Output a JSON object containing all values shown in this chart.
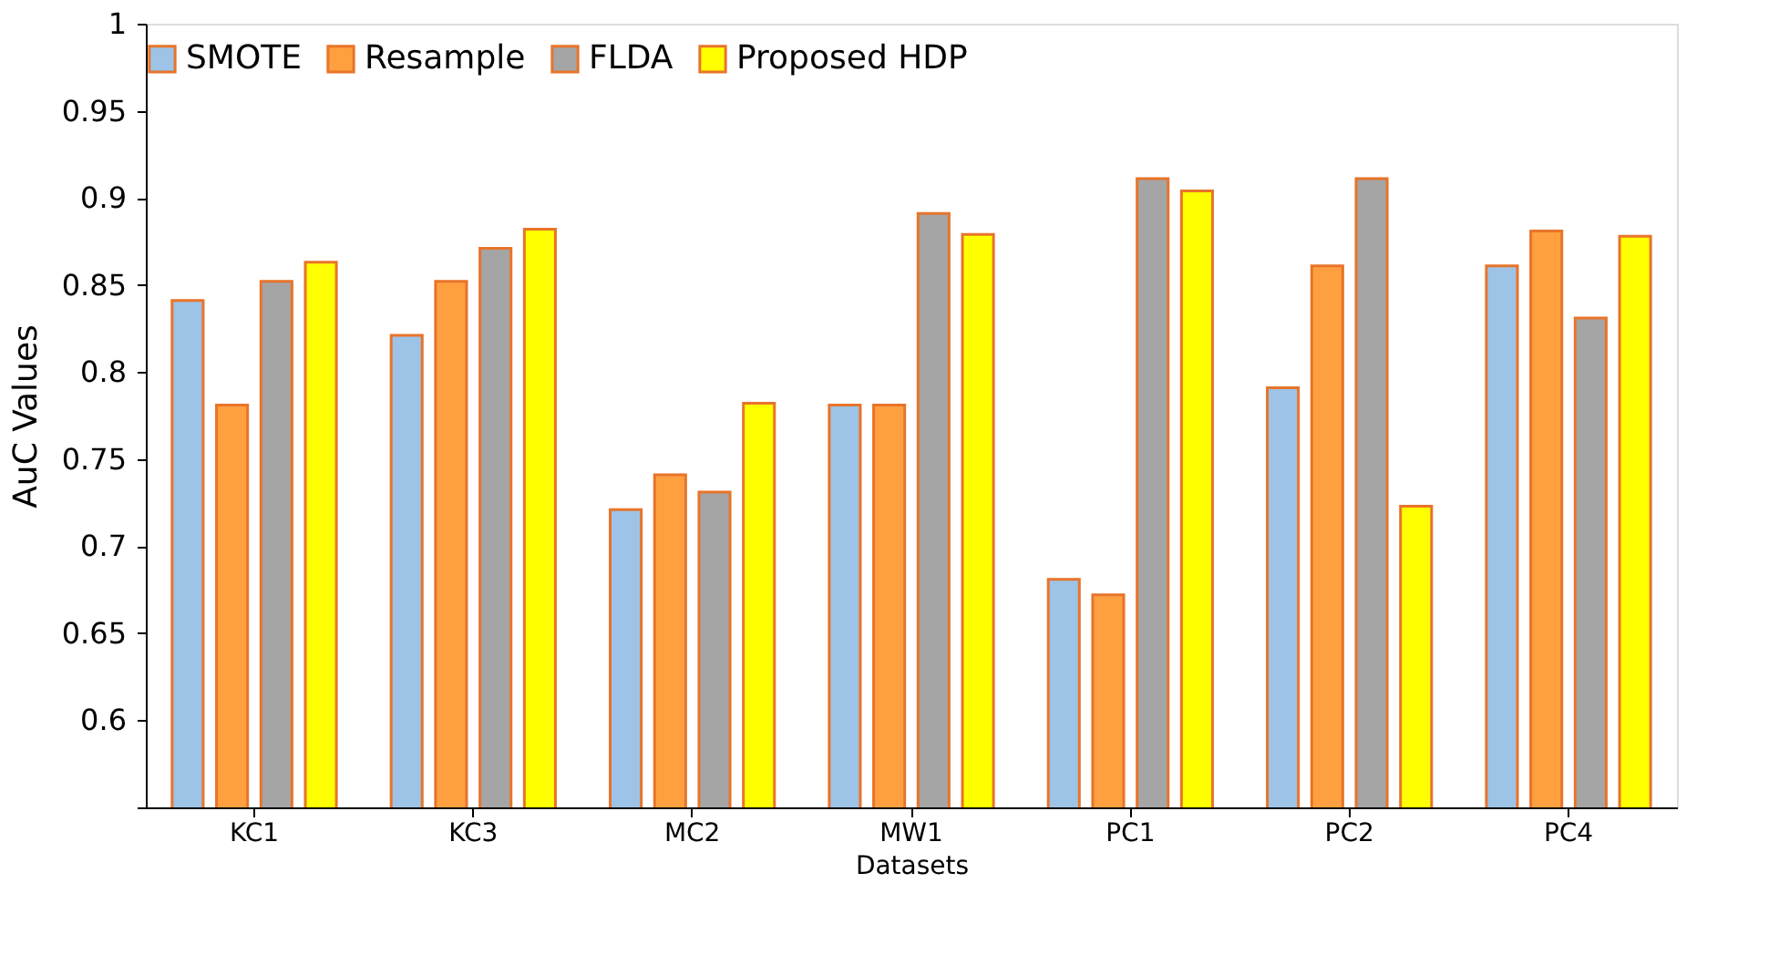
{
  "chart_data": {
    "type": "bar",
    "xlabel": "Datasets",
    "ylabel": "AuC Values",
    "categories": [
      "KC1",
      "KC3",
      "MC2",
      "MW1",
      "PC1",
      "PC2",
      "PC4"
    ],
    "series": [
      {
        "name": "SMOTE",
        "color": "#9dc3e6",
        "values": [
          0.841,
          0.821,
          0.721,
          0.781,
          0.681,
          0.791,
          0.861
        ]
      },
      {
        "name": "Resample",
        "color": "#ffa040",
        "values": [
          0.781,
          0.852,
          0.741,
          0.781,
          0.672,
          0.861,
          0.881
        ]
      },
      {
        "name": "FLDA",
        "color": "#a5a5a5",
        "values": [
          0.852,
          0.871,
          0.731,
          0.891,
          0.911,
          0.911,
          0.831
        ]
      },
      {
        "name": "Proposed HDP",
        "color": "#ffff00",
        "values": [
          0.863,
          0.882,
          0.782,
          0.879,
          0.904,
          0.723,
          0.878
        ]
      }
    ],
    "ylim": [
      0.55,
      1
    ],
    "yticks": [
      {
        "value": 0.55,
        "label": null
      },
      0.6,
      0.65,
      0.7,
      0.75,
      0.8,
      0.85,
      0.9,
      0.95,
      1
    ],
    "grid": false,
    "legend": "top"
  }
}
